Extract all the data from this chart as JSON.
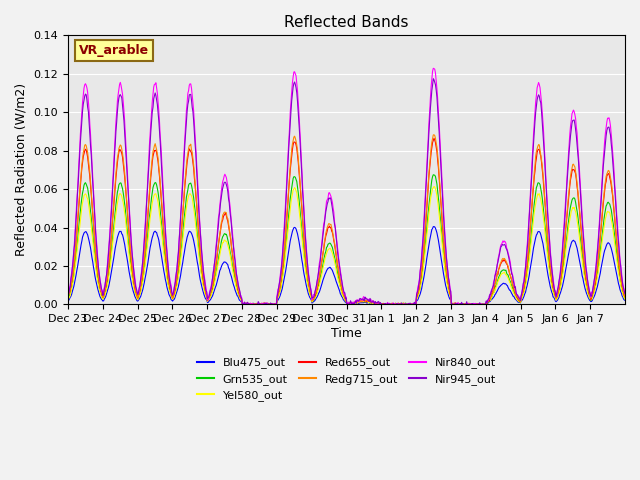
{
  "title": "Reflected Bands",
  "xlabel": "Time",
  "ylabel": "Reflected Radiation (W/m2)",
  "annotation_text": "VR_arable",
  "ylim": [
    0,
    0.14
  ],
  "line_colors": {
    "Blu475_out": "#0000FF",
    "Grn535_out": "#00CC00",
    "Yel580_out": "#FFFF00",
    "Red655_out": "#FF0000",
    "Redg715_out": "#FF8800",
    "Nir840_out": "#FF00FF",
    "Nir945_out": "#8800CC"
  },
  "band_order": [
    "Blu475_out",
    "Grn535_out",
    "Yel580_out",
    "Red655_out",
    "Redg715_out",
    "Nir840_out",
    "Nir945_out"
  ],
  "scale_factors": {
    "Blu475_out": 0.33,
    "Grn535_out": 0.55,
    "Yel580_out": 0.5,
    "Red655_out": 0.7,
    "Redg715_out": 0.72,
    "Nir840_out": 1.0,
    "Nir945_out": 0.95
  },
  "day_peaks": [
    0.115,
    0.115,
    0.115,
    0.115,
    0.067,
    0.0,
    0.121,
    0.058,
    0.003,
    0.0,
    0.123,
    0.0,
    0.033,
    0.115,
    0.101,
    0.097
  ],
  "n_points_per_day": 48,
  "n_days": 16,
  "background_color": "#E8E8E8",
  "grid_color": "#FFFFFF",
  "tick_labels": [
    "Dec 23",
    "Dec 24",
    "Dec 25",
    "Dec 26",
    "Dec 27",
    "Dec 28",
    "Dec 29",
    "Dec 30",
    "Dec 31",
    "Jan 1",
    "Jan 2",
    "Jan 3",
    "Jan 4",
    "Jan 5",
    "Jan 6",
    "Jan 7"
  ]
}
